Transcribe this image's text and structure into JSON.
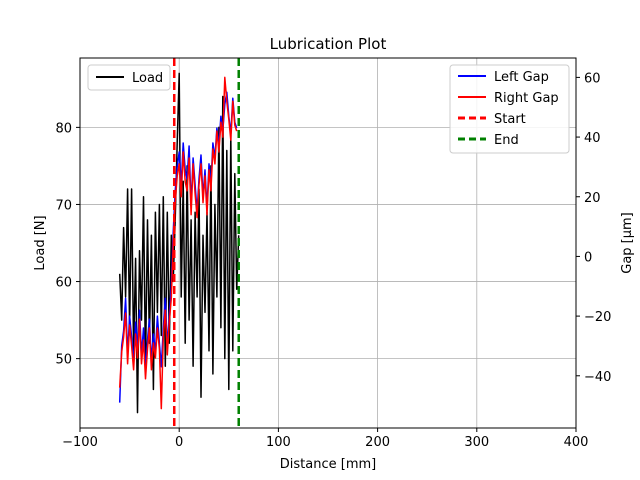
{
  "chart_data": {
    "type": "line",
    "title": "Lubrication Plot",
    "xlabel": "Distance [mm]",
    "ylabel_left": "Load [N]",
    "ylabel_right": "Gap [µm]",
    "xlim": [
      -100,
      400
    ],
    "ylim_left": [
      41,
      89
    ],
    "ylim_right": [
      -57.5,
      66.5
    ],
    "x_ticks": [
      -100,
      0,
      100,
      200,
      300,
      400
    ],
    "x_tick_labels": [
      "−100",
      "0",
      "100",
      "200",
      "300",
      "400"
    ],
    "y_left_ticks": [
      50,
      60,
      70,
      80
    ],
    "y_left_tick_labels": [
      "50",
      "60",
      "70",
      "80"
    ],
    "y_right_ticks": [
      -40,
      -20,
      0,
      20,
      40,
      60
    ],
    "y_right_tick_labels": [
      "−40",
      "−20",
      "0",
      "20",
      "40",
      "60"
    ],
    "grid": true,
    "legend_left": {
      "placement": "top-left",
      "entries": [
        {
          "label": "Load",
          "color": "#000000",
          "style": "solid"
        }
      ]
    },
    "legend_right": {
      "placement": "top-right",
      "entries": [
        {
          "label": "Left Gap",
          "color": "#0000ff",
          "style": "solid"
        },
        {
          "label": "Right Gap",
          "color": "#ff0000",
          "style": "solid"
        },
        {
          "label": "Start",
          "color": "#ff0000",
          "style": "dashed"
        },
        {
          "label": "End",
          "color": "#008000",
          "style": "dashed"
        }
      ]
    },
    "vlines": [
      {
        "name": "Start",
        "x": -5,
        "color": "#ff0000"
      },
      {
        "name": "End",
        "x": 60,
        "color": "#008000"
      }
    ],
    "series": [
      {
        "name": "Load",
        "axis": "left",
        "color": "#000000",
        "x": [
          -60,
          -58,
          -56,
          -54,
          -52,
          -50,
          -48,
          -46,
          -44,
          -42,
          -40,
          -38,
          -36,
          -34,
          -32,
          -30,
          -28,
          -26,
          -24,
          -22,
          -20,
          -18,
          -16,
          -14,
          -12,
          -10,
          -8,
          -6,
          -4,
          -2,
          0,
          2,
          4,
          6,
          8,
          10,
          12,
          14,
          16,
          18,
          20,
          22,
          24,
          26,
          28,
          30,
          32,
          34,
          36,
          38,
          40,
          42,
          44,
          46,
          48,
          50,
          52,
          54,
          56,
          58,
          60
        ],
        "y": [
          61,
          55,
          67,
          58,
          72,
          54,
          72,
          51,
          63,
          43,
          64,
          55,
          71,
          49,
          68,
          52,
          66,
          46,
          69,
          56,
          70,
          53,
          71,
          49,
          69,
          52,
          66,
          60,
          68,
          78,
          87,
          58,
          73,
          52,
          75,
          55,
          68,
          49,
          69,
          58,
          72,
          45,
          66,
          56,
          69,
          51,
          75,
          48,
          70,
          58,
          80,
          54,
          84,
          50,
          77,
          46,
          79,
          51,
          74,
          59,
          66
        ]
      },
      {
        "name": "Left Gap",
        "axis": "right",
        "color": "#0000ff",
        "x": [
          -60,
          -58,
          -56,
          -54,
          -52,
          -50,
          -48,
          -46,
          -44,
          -42,
          -40,
          -38,
          -36,
          -34,
          -32,
          -30,
          -28,
          -26,
          -24,
          -22,
          -20,
          -18,
          -16,
          -14,
          -12,
          -10,
          -8,
          -6,
          -4,
          -2,
          0,
          2,
          4,
          6,
          8,
          10,
          12,
          14,
          16,
          18,
          20,
          22,
          24,
          26,
          28,
          30,
          32,
          34,
          36,
          38,
          40,
          42,
          44,
          46,
          48,
          50,
          52,
          54,
          56,
          58
        ],
        "y": [
          -49,
          -30,
          -25,
          -14,
          -33,
          -20,
          -27,
          -36,
          -22,
          -31,
          -18,
          -33,
          -24,
          -38,
          -28,
          -21,
          -35,
          -26,
          -32,
          -20,
          -29,
          -37,
          -24,
          -14,
          -30,
          -20,
          -10,
          8,
          22,
          30,
          35,
          24,
          38,
          29,
          26,
          37,
          17,
          33,
          24,
          15,
          26,
          34,
          20,
          29,
          16,
          31,
          24,
          38,
          33,
          43,
          37,
          47,
          42,
          51,
          55,
          47,
          41,
          53,
          45,
          43
        ]
      },
      {
        "name": "Right Gap",
        "axis": "right",
        "color": "#ff0000",
        "x": [
          -60,
          -58,
          -56,
          -54,
          -52,
          -50,
          -48,
          -46,
          -44,
          -42,
          -40,
          -38,
          -36,
          -34,
          -32,
          -30,
          -28,
          -26,
          -24,
          -22,
          -20,
          -18,
          -16,
          -14,
          -12,
          -10,
          -8,
          -6,
          -4,
          -2,
          0,
          2,
          4,
          6,
          8,
          10,
          12,
          14,
          16,
          18,
          20,
          22,
          24,
          26,
          28,
          30,
          32,
          34,
          36,
          38,
          40,
          42,
          44,
          46,
          48,
          50,
          52,
          54,
          56,
          58
        ],
        "y": [
          -44,
          -32,
          -27,
          -19,
          -36,
          -23,
          -30,
          -38,
          -26,
          -34,
          -21,
          -36,
          -28,
          -41,
          -31,
          -24,
          -38,
          -29,
          -34,
          -24,
          -31,
          -51,
          -27,
          -18,
          -33,
          -22,
          -14,
          4,
          18,
          27,
          31,
          20,
          35,
          25,
          22,
          33,
          14,
          31,
          21,
          13,
          24,
          31,
          18,
          27,
          14,
          29,
          22,
          36,
          31,
          42,
          35,
          45,
          40,
          60,
          52,
          46,
          39,
          52,
          44,
          42
        ]
      }
    ]
  }
}
